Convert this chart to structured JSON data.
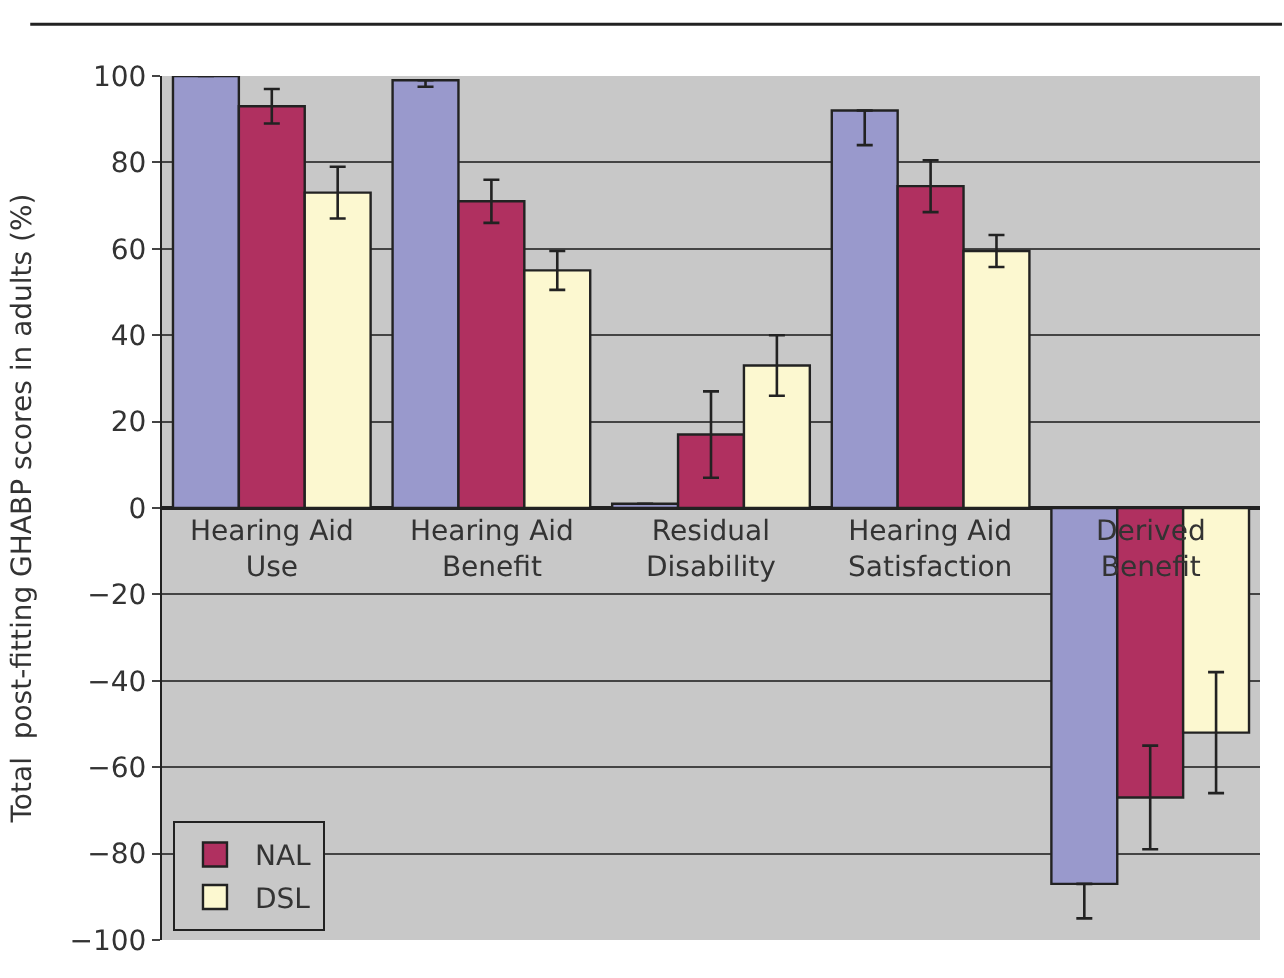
{
  "chart_data": {
    "type": "bar",
    "ylabel": "Total  post-fitting GHABP scores in adults (%)",
    "categories": [
      "Hearing Aid Use",
      "Hearing Aid Benefit",
      "Residual Disability",
      "Hearing Aid Satisfaction",
      "Derived Benefit"
    ],
    "series": [
      {
        "color": "#9999cc",
        "values": [
          100,
          99,
          1,
          92,
          -87
        ],
        "errors": [
          null,
          [
            97.5,
            99
          ],
          null,
          [
            84,
            92
          ],
          [
            -95,
            -87
          ]
        ]
      },
      {
        "name": "NAL",
        "color": "#b03060",
        "values": [
          93,
          71,
          17,
          74.5,
          -67
        ],
        "errors": [
          4,
          5,
          10,
          6,
          12
        ]
      },
      {
        "name": "DSL",
        "color": "#fcf8d0",
        "values": [
          73,
          55,
          33,
          59.5,
          -52
        ],
        "errors": [
          6,
          4.5,
          7,
          3.7,
          14
        ]
      }
    ],
    "ylim": [
      -100,
      100
    ],
    "yticks": [
      -100,
      -80,
      -60,
      -40,
      -20,
      0,
      20,
      40,
      60,
      80,
      100
    ],
    "grid": "y",
    "legend": "bottom left"
  }
}
